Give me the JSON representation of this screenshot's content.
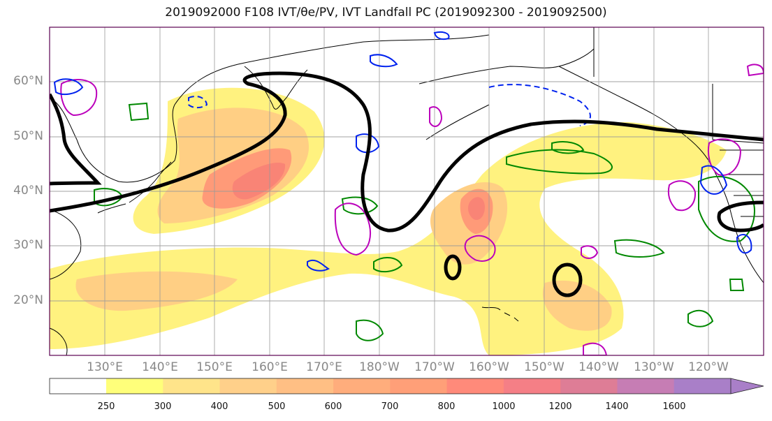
{
  "title": "2019092000 F108 IVT/θe/PV, IVT Landfall PC (2019092300 - 2019092500)",
  "map": {
    "lat_labels": [
      "60°N",
      "50°N",
      "40°N",
      "30°N",
      "20°N"
    ],
    "lon_labels": [
      "130°E",
      "140°E",
      "150°E",
      "160°E",
      "170°E",
      "180°W",
      "170°W",
      "160°W",
      "150°W",
      "140°W",
      "130°W",
      "120°W"
    ],
    "extent": {
      "lon_min": 120,
      "lon_max": 250,
      "lat_min": 10,
      "lat_max": 70
    },
    "grid": true
  },
  "legend": {
    "colorbar_levels": [
      "250",
      "300",
      "400",
      "500",
      "600",
      "700",
      "800",
      "1000",
      "1200",
      "1400",
      "1600"
    ],
    "colorbar_colors": [
      "#ffff7a",
      "#ffe48a",
      "#ffd08a",
      "#ffbf84",
      "#ffad7c",
      "#ff9f78",
      "#ff8a7a",
      "#f57f86",
      "#de7d96",
      "#c67db4",
      "#a97fc8"
    ],
    "extend": "max"
  },
  "colors": {
    "ivt_low": "#fff27f",
    "ivt_mid": "#ffcf84",
    "ivt_high": "#ff9a78",
    "ivt_max": "#f98476",
    "theta_e": "#000000",
    "pv_positive": "#0022ee",
    "pv_magenta": "#bb00bb",
    "landfall_pc": "#008800",
    "coastline": "#000000",
    "gridline": "#999999"
  }
}
